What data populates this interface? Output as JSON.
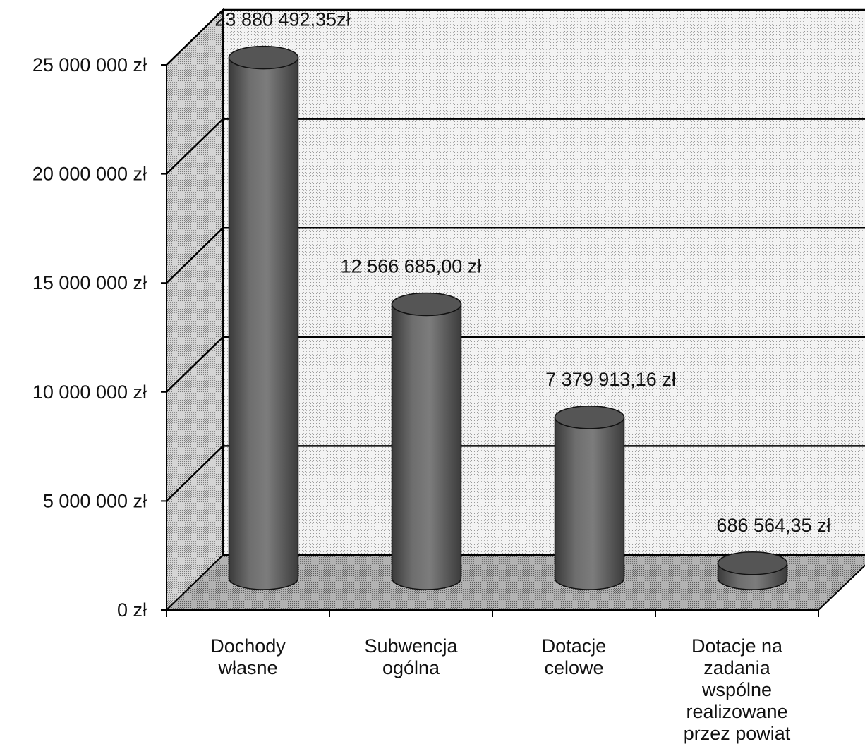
{
  "chart_data": {
    "type": "bar",
    "style": "3d-cylinder",
    "title": "",
    "xlabel": "",
    "ylabel": "",
    "ylim": [
      0,
      25000000
    ],
    "yticks": [
      0,
      5000000,
      10000000,
      15000000,
      20000000,
      25000000
    ],
    "ytick_labels": [
      "0 zł",
      "5 000 000 zł",
      "10 000 000 zł",
      "15 000 000 zł",
      "20 000 000 zł",
      "25 000 000 zł"
    ],
    "grid": true,
    "categories": [
      [
        "Dochody",
        "własne"
      ],
      [
        "Subwencja",
        "ogólna"
      ],
      [
        "Dotacje",
        "celowe"
      ],
      [
        "Dotacje na",
        "zadania",
        "wspólne",
        "realizowane",
        "przez powiat"
      ]
    ],
    "values": [
      23880492.35,
      12566685.0,
      7379913.16,
      686564.35
    ],
    "data_labels": [
      "23 880 492,35zł",
      "12 566 685,00 zł",
      "7 379 913,16 zł",
      "686 564,35 zł"
    ],
    "colors": {
      "bar": "#6a6a6a",
      "bar_dark": "#2e2e2e",
      "bar_light": "#9a9a9a",
      "floor": "#a8a8a8",
      "side_wall": "#c8c8c8",
      "back_wall": "#ececec",
      "gridline": "#000000"
    }
  }
}
